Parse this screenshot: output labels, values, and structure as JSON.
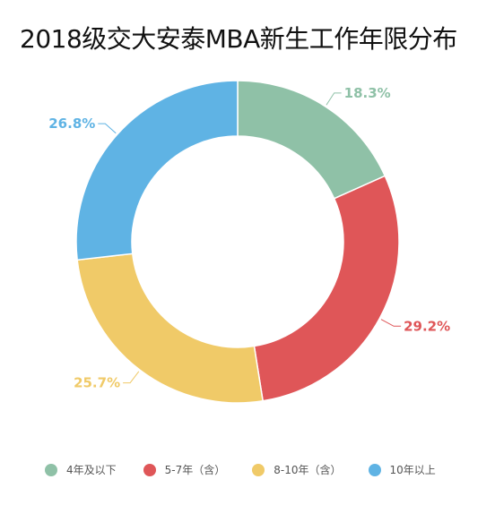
{
  "chart_data": {
    "type": "pie",
    "variant": "donut",
    "title": "2018级交大安泰MBA新生工作年限分布",
    "categories": [
      "4年及以下",
      "5-7年（含）",
      "8-10年（含）",
      "10年以上"
    ],
    "values": [
      18.3,
      29.2,
      25.7,
      26.8
    ],
    "value_labels": [
      "18.3%",
      "29.2%",
      "25.7%",
      "26.8%"
    ],
    "colors": [
      "#8fc1a7",
      "#df5658",
      "#f0ca68",
      "#5fb3e4"
    ],
    "legend_position": "bottom",
    "start_angle": "top",
    "direction": "clockwise"
  }
}
